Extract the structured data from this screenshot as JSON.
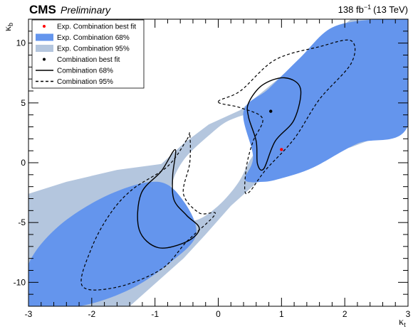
{
  "header": {
    "experiment": "CMS",
    "status": "Preliminary",
    "lumi_value": "138 fb",
    "lumi_exp": "−1",
    "lumi_energy": "(13 TeV)"
  },
  "colors": {
    "band95": "#b4c6de",
    "band68": "#6495ed",
    "exp_best_fit": "#ff0000",
    "obs_best_fit": "#000000"
  },
  "chart_data": {
    "type": "contour",
    "xlabel": "κ",
    "xlabel_sub": "t",
    "ylabel": "κ",
    "ylabel_sub": "b",
    "xlim": [
      -3,
      3
    ],
    "ylim": [
      -12,
      12
    ],
    "x_ticks": [
      "-3",
      "-2",
      "-1",
      "0",
      "1",
      "2",
      "3"
    ],
    "y_ticks": [
      "-10",
      "-5",
      "0",
      "5",
      "10"
    ],
    "legend": [
      {
        "label": "Exp. Combination best fit",
        "style": "red-dot"
      },
      {
        "label": "Exp. Combination 68%",
        "style": "fill-68"
      },
      {
        "label": "Exp. Combination 95%",
        "style": "fill-95"
      },
      {
        "label": "Combination best fit",
        "style": "black-dot"
      },
      {
        "label": "Combination 68%",
        "style": "solid-line"
      },
      {
        "label": "Combination 95%",
        "style": "dashed-line"
      }
    ],
    "exp_best_fit": {
      "x": 1.0,
      "y": 1.1
    },
    "obs_best_fit": {
      "x": 0.83,
      "y": 4.3
    },
    "exp_95_outer": [
      [
        -3,
        -12
      ],
      [
        -3,
        -2.6
      ],
      [
        -2.4,
        -1.6
      ],
      [
        -1.6,
        -0.6
      ],
      [
        -0.9,
        -0.1
      ],
      [
        -0.55,
        1.6
      ],
      [
        -0.15,
        3.2
      ],
      [
        0.35,
        4.4
      ],
      [
        0.9,
        6.8
      ],
      [
        1.6,
        10
      ],
      [
        2.1,
        12
      ],
      [
        3,
        12
      ],
      [
        3,
        3.1
      ],
      [
        2.1,
        1.3
      ],
      [
        1.35,
        0.2
      ],
      [
        0.75,
        -1.0
      ],
      [
        0.2,
        -3.6
      ],
      [
        -0.2,
        -6.0
      ],
      [
        -0.55,
        -8
      ],
      [
        -1.4,
        -12
      ]
    ],
    "exp_68_upper": [
      [
        0.4,
        4.3
      ],
      [
        0.8,
        6.2
      ],
      [
        1.3,
        8.8
      ],
      [
        1.8,
        11.3
      ],
      [
        2.5,
        12
      ],
      [
        3,
        12
      ],
      [
        3,
        3.1
      ],
      [
        2.2,
        1.6
      ],
      [
        1.5,
        -0.4
      ],
      [
        1.0,
        -1.3
      ],
      [
        0.7,
        -1.6
      ],
      [
        0.42,
        -1.4
      ],
      [
        0.55,
        0.5
      ]
    ],
    "exp_68_lower": [
      [
        -0.55,
        -3.2
      ],
      [
        -0.95,
        -1.6
      ],
      [
        -1.7,
        -2.6
      ],
      [
        -2.5,
        -5.2
      ],
      [
        -3,
        -8.5
      ],
      [
        -3,
        -12
      ],
      [
        -2.2,
        -12
      ],
      [
        -1.4,
        -10.6
      ],
      [
        -0.75,
        -8.3
      ],
      [
        -0.35,
        -6.0
      ]
    ],
    "exp_95_inner_hole": [
      [
        0.2,
        3.6
      ],
      [
        0.55,
        3.9
      ],
      [
        0.62,
        1.5
      ],
      [
        0.48,
        0.0
      ],
      [
        0.3,
        -1.8
      ],
      [
        0.0,
        -3.6
      ],
      [
        -0.35,
        -4.8
      ],
      [
        -0.7,
        -4.6
      ],
      [
        -0.75,
        -2.2
      ],
      [
        -0.55,
        0.2
      ],
      [
        -0.1,
        2.5
      ]
    ],
    "comb_68_upper": [
      [
        0.48,
        5.0
      ],
      [
        0.7,
        6.5
      ],
      [
        1.05,
        7.1
      ],
      [
        1.3,
        6.2
      ],
      [
        1.2,
        3.6
      ],
      [
        0.9,
        1.8
      ],
      [
        0.72,
        -0.5
      ],
      [
        0.62,
        -0.1
      ],
      [
        0.6,
        1.8
      ],
      [
        0.48,
        3.8
      ]
    ],
    "comb_68_lower": [
      [
        -0.68,
        1.1
      ],
      [
        -0.9,
        -0.7
      ],
      [
        -1.22,
        -2.6
      ],
      [
        -1.25,
        -5.6
      ],
      [
        -0.95,
        -7.1
      ],
      [
        -0.5,
        -6.6
      ],
      [
        -0.3,
        -5.5
      ],
      [
        -0.5,
        -4.4
      ],
      [
        -0.7,
        -3.1
      ],
      [
        -0.72,
        -1.1
      ]
    ],
    "comb_95_upper": [
      [
        0.0,
        5.1
      ],
      [
        0.35,
        6.0
      ],
      [
        0.9,
        8.6
      ],
      [
        1.6,
        9.7
      ],
      [
        2.1,
        10.2
      ],
      [
        2.1,
        8.3
      ],
      [
        1.6,
        5.3
      ],
      [
        1.2,
        2.0
      ],
      [
        0.75,
        -0.6
      ],
      [
        0.5,
        -2.4
      ],
      [
        0.42,
        -2.3
      ],
      [
        0.45,
        -0.2
      ],
      [
        0.55,
        1.8
      ],
      [
        0.7,
        3.7
      ],
      [
        0.35,
        4.6
      ]
    ],
    "comb_95_lower": [
      [
        -0.5,
        1.9
      ],
      [
        -0.8,
        -0.3
      ],
      [
        -1.35,
        -2.2
      ],
      [
        -1.7,
        -4.2
      ],
      [
        -2.0,
        -7.1
      ],
      [
        -2.15,
        -10.3
      ],
      [
        -1.6,
        -10.4
      ],
      [
        -0.9,
        -8.9
      ],
      [
        -0.5,
        -6.6
      ],
      [
        -0.05,
        -4.3
      ],
      [
        -0.3,
        -4.2
      ],
      [
        -0.55,
        -2.6
      ],
      [
        -0.45,
        0.0
      ],
      [
        -0.45,
        2.4
      ]
    ]
  }
}
